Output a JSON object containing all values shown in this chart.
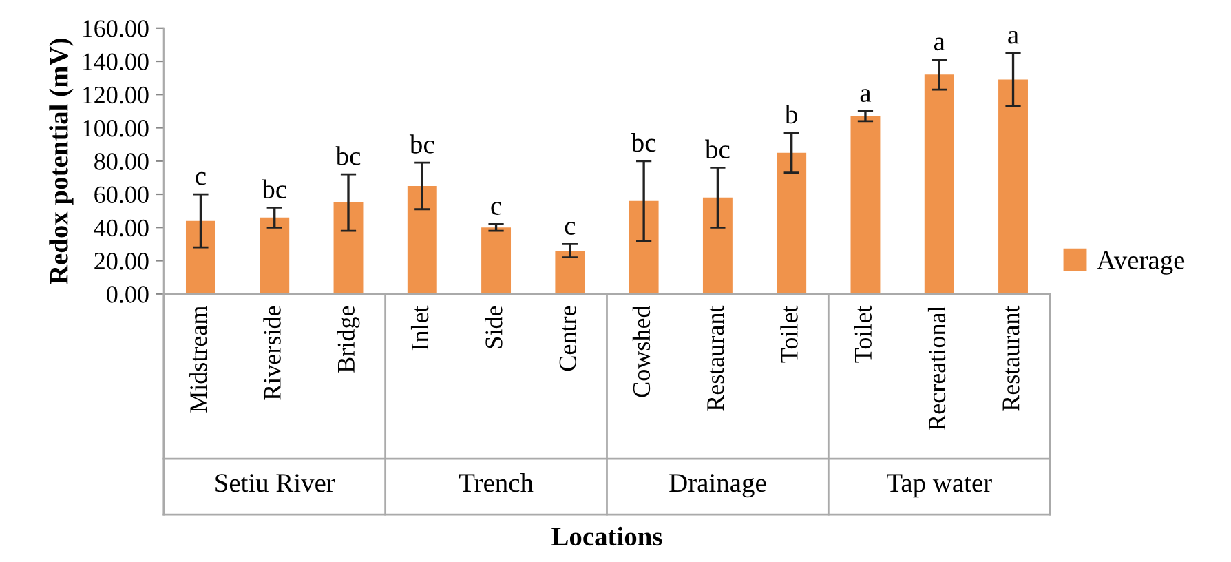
{
  "chart_data": {
    "type": "bar",
    "xlabel": "Locations",
    "ylabel": "Redox potential (mV)",
    "categories": [
      "Midstream",
      "Riverside",
      "Bridge",
      "Inlet",
      "Side",
      "Centre",
      "Cowshed",
      "Restaurant",
      "Toilet",
      "Toilet",
      "Recreational",
      "Restaurant"
    ],
    "series": [
      {
        "name": "Average",
        "color": "#f0934b",
        "values": [
          44,
          46,
          55,
          65,
          40,
          26,
          56,
          58,
          85,
          107,
          132,
          129
        ],
        "errors": [
          16,
          6,
          17,
          14,
          2,
          4,
          24,
          18,
          12,
          3,
          9,
          16
        ],
        "value_labels": [
          "c",
          "bc",
          "bc",
          "bc",
          "c",
          "c",
          "bc",
          "bc",
          "b",
          "a",
          "a",
          "a"
        ]
      }
    ],
    "annotations": [
      "Setiu River",
      "Trench",
      "Drainage",
      "Tap water"
    ],
    "ylim": [
      0,
      160
    ],
    "yticks": [
      {
        "value": 0,
        "label": "0.00"
      },
      {
        "value": 20,
        "label": "20.00"
      },
      {
        "value": 40,
        "label": "40.00"
      },
      {
        "value": 60,
        "label": "60.00"
      },
      {
        "value": 80,
        "label": "80.00"
      },
      {
        "value": 100,
        "label": "100.00"
      },
      {
        "value": 120,
        "label": "120.00"
      },
      {
        "value": 140,
        "label": "140.00"
      },
      {
        "value": 160,
        "label": "160.00"
      }
    ],
    "grid": false,
    "legend": "right"
  }
}
